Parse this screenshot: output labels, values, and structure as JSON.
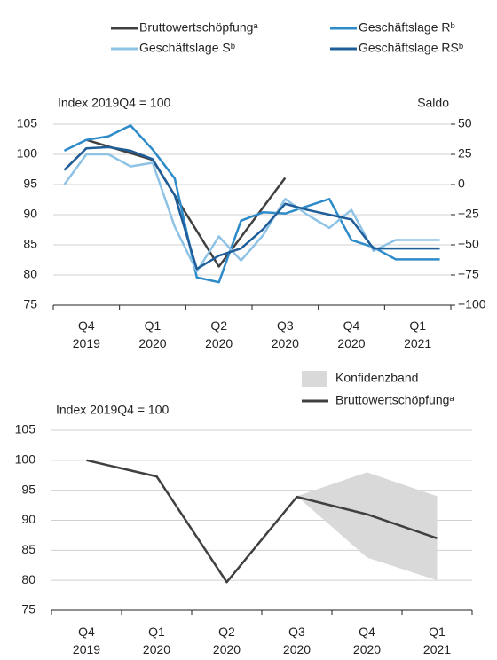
{
  "chart_data": [
    {
      "type": "line",
      "ylabel": "Index 2019Q4 = 100",
      "y2label": "Saldo",
      "xlim": [
        -0.5,
        17.5
      ],
      "xticks": [
        {
          "value": 1,
          "label": "Q4 2019"
        },
        {
          "value": 4,
          "label": "Q1 2020"
        },
        {
          "value": 7,
          "label": "Q2 2020"
        },
        {
          "value": 10,
          "label": "Q3 2020"
        },
        {
          "value": 13,
          "label": "Q4 2020"
        },
        {
          "value": 16,
          "label": "Q1 2021"
        }
      ],
      "ylim": [
        75,
        105
      ],
      "yticks": [
        75,
        80,
        85,
        90,
        95,
        100,
        105
      ],
      "y2lim": [
        -100,
        50
      ],
      "y2ticks": [
        {
          "value": -100,
          "label": "−100"
        },
        {
          "value": -75,
          "label": "−75"
        },
        {
          "value": -50,
          "label": "−50"
        },
        {
          "value": -25,
          "label": "−25"
        },
        0,
        25,
        50
      ],
      "grid": true,
      "series": [
        {
          "name": "Bruttowertschöpfungᵃ",
          "color": "#404040",
          "x": [
            1,
            4,
            7,
            10
          ],
          "values": [
            102.4,
            99.1,
            81.4,
            96.1
          ]
        },
        {
          "name": "Geschäftslage Rᵇ",
          "color": "#2e8bc9",
          "axis": "y2",
          "x": [
            0,
            1,
            2,
            3,
            4,
            5,
            6,
            7,
            8,
            9,
            10,
            11,
            12,
            13,
            14,
            15,
            16,
            17
          ],
          "values": [
            28,
            37,
            40,
            49,
            29,
            5,
            -77,
            -81,
            -30,
            -23,
            -24,
            -18,
            -12,
            -46,
            -52,
            -62,
            -62,
            -62
          ]
        },
        {
          "name": "Geschäftslage Sᵇ",
          "color": "#8ec3e6",
          "axis": "y2",
          "x": [
            0,
            1,
            2,
            3,
            4,
            5,
            6,
            7,
            8,
            9,
            10,
            11,
            12,
            13,
            14,
            15,
            16,
            17
          ],
          "values": [
            0,
            25,
            25,
            15,
            18,
            -35,
            -72,
            -43,
            -63,
            -42,
            -12,
            -25,
            -36,
            -21,
            -55,
            -46,
            -46,
            -46
          ]
        },
        {
          "name": "Geschäftslage RSᵇ",
          "color": "#1f5d99",
          "axis": "y2",
          "x": [
            0,
            1,
            2,
            3,
            4,
            5,
            6,
            7,
            8,
            9,
            10,
            11,
            12,
            13,
            14,
            15,
            16,
            17
          ],
          "values": [
            12,
            30,
            31,
            28,
            21,
            -9,
            -70,
            -59,
            -53,
            -37,
            -16,
            -21,
            -25,
            -29,
            -53,
            -53,
            -53,
            -53
          ]
        }
      ]
    },
    {
      "type": "line",
      "ylabel": "Index 2019Q4 = 100",
      "xlim": [
        -0.5,
        17.5
      ],
      "xticks": [
        {
          "value": 1,
          "label": "Q4 2019"
        },
        {
          "value": 4,
          "label": "Q1 2020"
        },
        {
          "value": 7,
          "label": "Q2 2020"
        },
        {
          "value": 10,
          "label": "Q3 2020"
        },
        {
          "value": 13,
          "label": "Q4 2020"
        },
        {
          "value": 16,
          "label": "Q1 2021"
        }
      ],
      "ylim": [
        75,
        105
      ],
      "yticks": [
        75,
        80,
        85,
        90,
        95,
        100,
        105
      ],
      "grid": true,
      "band": {
        "name": "Konfidenzband",
        "color": "#d9d9d9",
        "x": [
          10,
          13,
          16
        ],
        "lower": [
          94,
          83.8,
          80
        ],
        "upper": [
          94,
          98,
          94
        ]
      },
      "series": [
        {
          "name": "Bruttowertschöpfungᵃ",
          "color": "#404040",
          "x": [
            1,
            4,
            7,
            10,
            13,
            16
          ],
          "values": [
            100,
            97.3,
            79.7,
            93.9,
            91,
            87
          ]
        }
      ]
    }
  ]
}
